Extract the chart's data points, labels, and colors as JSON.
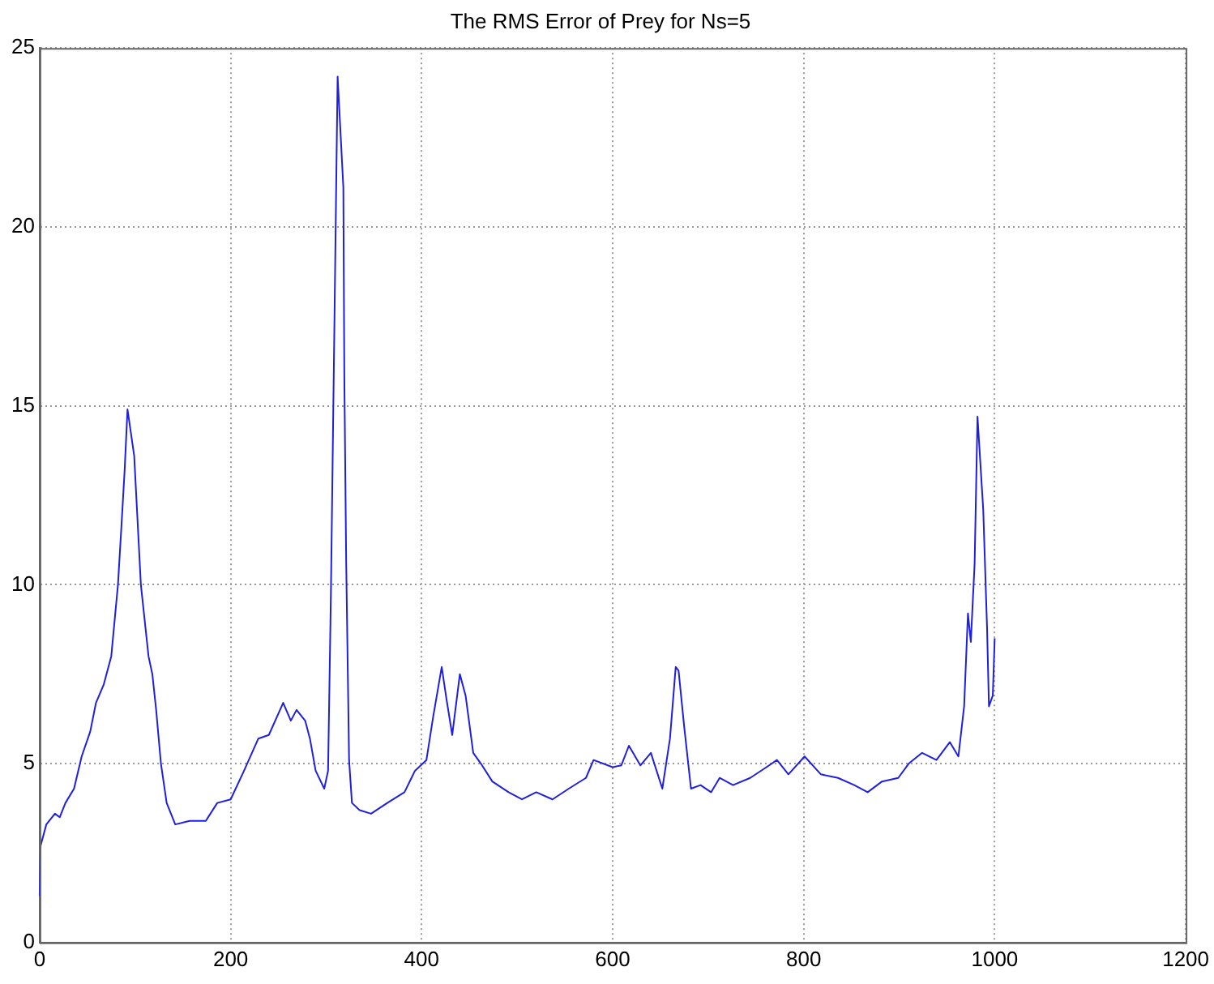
{
  "chart_data": {
    "type": "line",
    "title": "The RMS Error of Prey for Ns=5",
    "x": [
      0,
      1,
      7,
      16,
      21,
      27,
      36,
      44,
      53,
      59,
      67,
      75,
      82,
      86,
      89,
      92,
      99,
      106,
      114,
      118,
      122,
      127,
      133,
      142,
      157,
      174,
      186,
      200,
      214,
      229,
      240,
      255,
      263,
      269,
      278,
      283,
      289,
      298,
      302,
      305,
      312,
      318,
      319,
      321,
      324,
      327,
      335,
      347,
      364,
      382,
      393,
      405,
      412,
      421,
      426,
      432,
      440,
      446,
      454,
      462,
      474,
      491,
      505,
      520,
      537,
      554,
      572,
      580,
      600,
      609,
      617,
      629,
      640,
      652,
      660,
      666,
      669,
      675,
      682,
      692,
      703,
      712,
      726,
      744,
      761,
      772,
      784,
      801,
      818,
      836,
      853,
      867,
      882,
      899,
      910,
      924,
      939,
      953,
      962,
      968,
      972,
      975,
      979,
      982,
      988,
      992,
      994,
      998,
      1000
    ],
    "series": [
      {
        "color": "#1f1fe0",
        "values": [
          1.3,
          2.7,
          3.3,
          3.6,
          3.5,
          3.9,
          4.3,
          5.2,
          5.9,
          6.7,
          7.2,
          8.0,
          10,
          11.8,
          13.2,
          14.9,
          13.6,
          10,
          8,
          7.5,
          6.5,
          5,
          3.9,
          3.3,
          3.4,
          3.4,
          3.9,
          4.0,
          4.8,
          5.7,
          5.8,
          6.7,
          6.2,
          6.5,
          6.2,
          5.7,
          4.8,
          4.3,
          4.8,
          9.8,
          24.2,
          21.1,
          15.9,
          10.6,
          5.1,
          3.9,
          3.7,
          3.6,
          3.9,
          4.2,
          4.8,
          5.1,
          6.3,
          7.7,
          6.8,
          5.8,
          7.5,
          6.9,
          5.3,
          5.0,
          4.5,
          4.2,
          4.0,
          4.2,
          4.0,
          4.3,
          4.6,
          5.1,
          4.9,
          4.95,
          5.5,
          4.95,
          5.3,
          4.3,
          5.7,
          7.7,
          7.6,
          6.0,
          4.3,
          4.4,
          4.2,
          4.6,
          4.4,
          4.6,
          4.9,
          5.1,
          4.7,
          5.2,
          4.7,
          4.6,
          4.4,
          4.2,
          4.5,
          4.6,
          5.0,
          5.3,
          5.1,
          5.6,
          5.2,
          6.6,
          9.2,
          8.4,
          10.6,
          14.7,
          12.1,
          8.8,
          6.6,
          6.9,
          8.5
        ]
      }
    ],
    "xlim": [
      0,
      1200
    ],
    "xticks": [
      0,
      200,
      400,
      600,
      800,
      1000,
      1200
    ],
    "ylim": [
      0,
      25
    ],
    "yticks": [
      0,
      5,
      10,
      15,
      20,
      25
    ],
    "grid": true,
    "legend": false,
    "marker": "none",
    "line_style": "solid"
  }
}
